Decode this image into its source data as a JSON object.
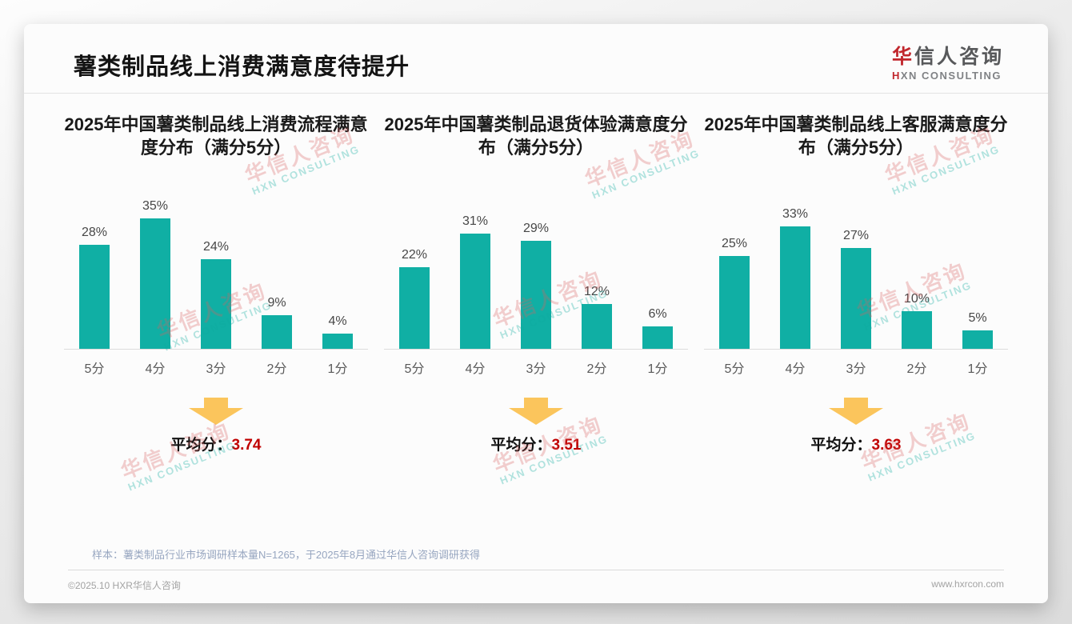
{
  "page": {
    "title": "薯类制品线上消费满意度待提升",
    "logo": {
      "cn_accent": "华",
      "cn_rest": "信人咨询",
      "en_accent": "H",
      "en_rest": "XN CONSULTING"
    },
    "note": "样本：薯类制品行业市场调研样本量N=1265，于2025年8月通过华信人咨询调研获得",
    "footer_left": "©2025.10 HXR华信人咨询",
    "footer_right": "www.hxrcon.com",
    "watermark": {
      "cn": "华信人咨询",
      "en": "HXN CONSULTING"
    }
  },
  "colors": {
    "bar": "#10AFA4",
    "accent_red": "#C00000",
    "arrow": "#FBC55C",
    "logo_red": "#C1272D"
  },
  "chart_data": [
    {
      "type": "bar",
      "title": "2025年中国薯类制品线上消费流程满意度分布（满分5分）",
      "categories": [
        "5分",
        "4分",
        "3分",
        "2分",
        "1分"
      ],
      "values": [
        28,
        35,
        24,
        9,
        4
      ],
      "unit": "%",
      "ylim": [
        0,
        40
      ],
      "grid": false,
      "bar_color": "#10AFA4",
      "average_label": "平均分：",
      "average": "3.74"
    },
    {
      "type": "bar",
      "title": "2025年中国薯类制品退货体验满意度分布（满分5分）",
      "categories": [
        "5分",
        "4分",
        "3分",
        "2分",
        "1分"
      ],
      "values": [
        22,
        31,
        29,
        12,
        6
      ],
      "unit": "%",
      "ylim": [
        0,
        40
      ],
      "grid": false,
      "bar_color": "#10AFA4",
      "average_label": "平均分：",
      "average": "3.51"
    },
    {
      "type": "bar",
      "title": "2025年中国薯类制品线上客服满意度分布（满分5分）",
      "categories": [
        "5分",
        "4分",
        "3分",
        "2分",
        "1分"
      ],
      "values": [
        25,
        33,
        27,
        10,
        5
      ],
      "unit": "%",
      "ylim": [
        0,
        40
      ],
      "grid": false,
      "bar_color": "#10AFA4",
      "average_label": "平均分：",
      "average": "3.63"
    }
  ]
}
